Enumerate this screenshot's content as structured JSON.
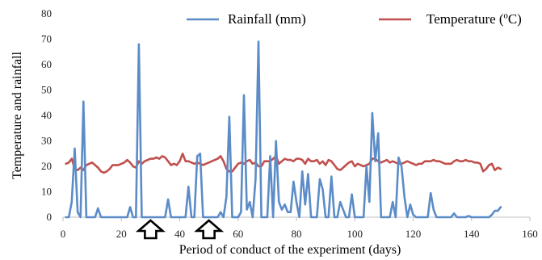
{
  "chart_data": {
    "type": "line",
    "xlabel": "Period of conduct of the experiment (days)",
    "ylabel": "Temperature and rainfall",
    "xlim": [
      0,
      160
    ],
    "ylim": [
      0,
      80
    ],
    "x_ticks": [
      0,
      20,
      40,
      60,
      80,
      100,
      120,
      140,
      160
    ],
    "y_ticks": [
      0,
      10,
      20,
      30,
      40,
      50,
      60,
      70,
      80
    ],
    "grid": false,
    "legend_position": "top",
    "annotations": [
      {
        "type": "up-arrow",
        "x": 30
      },
      {
        "type": "up-arrow",
        "x": 50
      }
    ],
    "series": [
      {
        "name": "Rainfall (mm)",
        "color": "#5B8CC8",
        "points": [
          [
            1,
            0
          ],
          [
            2,
            0
          ],
          [
            3,
            6
          ],
          [
            4,
            27
          ],
          [
            5,
            2
          ],
          [
            6,
            0
          ],
          [
            7,
            45.5
          ],
          [
            8,
            0
          ],
          [
            9,
            0
          ],
          [
            10,
            0
          ],
          [
            11,
            0
          ],
          [
            12,
            3.5
          ],
          [
            13,
            0
          ],
          [
            14,
            0
          ],
          [
            15,
            0
          ],
          [
            16,
            0
          ],
          [
            17,
            0
          ],
          [
            18,
            0
          ],
          [
            19,
            0
          ],
          [
            20,
            0
          ],
          [
            21,
            0
          ],
          [
            22,
            0
          ],
          [
            23,
            4
          ],
          [
            24,
            0
          ],
          [
            25,
            0
          ],
          [
            26,
            68
          ],
          [
            27,
            0
          ],
          [
            28,
            0
          ],
          [
            29,
            0
          ],
          [
            30,
            0
          ],
          [
            31,
            0
          ],
          [
            32,
            0
          ],
          [
            33,
            0
          ],
          [
            34,
            0
          ],
          [
            35,
            0
          ],
          [
            36,
            7
          ],
          [
            37,
            0
          ],
          [
            38,
            0
          ],
          [
            39,
            0
          ],
          [
            40,
            0
          ],
          [
            41,
            0
          ],
          [
            42,
            0
          ],
          [
            43,
            12
          ],
          [
            44,
            0
          ],
          [
            45,
            0
          ],
          [
            46,
            24
          ],
          [
            47,
            25
          ],
          [
            48,
            0
          ],
          [
            49,
            0
          ],
          [
            50,
            0
          ],
          [
            51,
            0
          ],
          [
            52,
            0
          ],
          [
            53,
            0
          ],
          [
            54,
            2
          ],
          [
            55,
            0
          ],
          [
            56,
            8
          ],
          [
            57,
            39.5
          ],
          [
            58,
            0
          ],
          [
            59,
            0
          ],
          [
            60,
            0
          ],
          [
            61,
            2
          ],
          [
            62,
            48
          ],
          [
            63,
            3
          ],
          [
            64,
            6
          ],
          [
            65,
            0
          ],
          [
            66,
            15
          ],
          [
            67,
            69
          ],
          [
            68,
            0
          ],
          [
            69,
            0
          ],
          [
            70,
            0
          ],
          [
            71,
            24
          ],
          [
            72,
            0
          ],
          [
            73,
            30
          ],
          [
            74,
            6
          ],
          [
            75,
            3
          ],
          [
            76,
            5
          ],
          [
            77,
            2
          ],
          [
            78,
            2
          ],
          [
            79,
            14
          ],
          [
            80,
            6
          ],
          [
            81,
            0
          ],
          [
            82,
            18
          ],
          [
            83,
            5
          ],
          [
            84,
            17
          ],
          [
            85,
            0
          ],
          [
            86,
            0
          ],
          [
            87,
            0
          ],
          [
            88,
            15
          ],
          [
            89,
            11
          ],
          [
            90,
            0
          ],
          [
            91,
            0
          ],
          [
            92,
            16
          ],
          [
            93,
            0
          ],
          [
            94,
            0
          ],
          [
            95,
            6
          ],
          [
            96,
            3
          ],
          [
            97,
            0
          ],
          [
            98,
            0
          ],
          [
            99,
            9
          ],
          [
            100,
            0
          ],
          [
            101,
            0
          ],
          [
            102,
            0
          ],
          [
            103,
            0
          ],
          [
            104,
            20
          ],
          [
            105,
            6
          ],
          [
            106,
            41
          ],
          [
            107,
            22
          ],
          [
            108,
            33
          ],
          [
            109,
            0
          ],
          [
            110,
            0
          ],
          [
            111,
            0
          ],
          [
            112,
            0
          ],
          [
            113,
            6
          ],
          [
            114,
            0
          ],
          [
            115,
            23.5
          ],
          [
            116,
            20
          ],
          [
            117,
            8
          ],
          [
            118,
            0
          ],
          [
            119,
            5
          ],
          [
            120,
            1
          ],
          [
            121,
            0
          ],
          [
            122,
            0
          ],
          [
            123,
            0
          ],
          [
            124,
            0
          ],
          [
            125,
            0
          ],
          [
            126,
            9.5
          ],
          [
            127,
            3
          ],
          [
            128,
            0
          ],
          [
            129,
            0
          ],
          [
            130,
            0
          ],
          [
            131,
            0
          ],
          [
            132,
            0
          ],
          [
            133,
            0
          ],
          [
            134,
            1.5
          ],
          [
            135,
            0
          ],
          [
            136,
            0
          ],
          [
            137,
            0
          ],
          [
            138,
            0
          ],
          [
            139,
            0.5
          ],
          [
            140,
            0
          ],
          [
            141,
            0
          ],
          [
            142,
            0
          ],
          [
            143,
            0
          ],
          [
            144,
            0
          ],
          [
            145,
            0
          ],
          [
            146,
            0
          ],
          [
            147,
            1
          ],
          [
            148,
            2.5
          ],
          [
            149,
            2.5
          ],
          [
            150,
            4
          ]
        ]
      },
      {
        "name": "Temperature (ºC)",
        "color": "#C0504D",
        "points": [
          [
            1,
            21
          ],
          [
            2,
            21.5
          ],
          [
            3,
            23
          ],
          [
            4,
            19
          ],
          [
            5,
            18.5
          ],
          [
            6,
            19.5
          ],
          [
            7,
            18.5
          ],
          [
            8,
            20.5
          ],
          [
            9,
            21
          ],
          [
            10,
            21.5
          ],
          [
            11,
            20.5
          ],
          [
            12,
            19.5
          ],
          [
            13,
            18
          ],
          [
            14,
            17.5
          ],
          [
            15,
            18
          ],
          [
            16,
            19
          ],
          [
            17,
            20.5
          ],
          [
            18,
            20.5
          ],
          [
            19,
            20.5
          ],
          [
            20,
            21
          ],
          [
            21,
            21.5
          ],
          [
            22,
            22.5
          ],
          [
            23,
            21.5
          ],
          [
            24,
            20
          ],
          [
            25,
            19.5
          ],
          [
            26,
            22
          ],
          [
            27,
            21
          ],
          [
            28,
            22
          ],
          [
            29,
            22.5
          ],
          [
            30,
            23
          ],
          [
            31,
            23
          ],
          [
            32,
            23.5
          ],
          [
            33,
            23
          ],
          [
            34,
            24
          ],
          [
            35,
            23.5
          ],
          [
            36,
            22
          ],
          [
            37,
            20.5
          ],
          [
            38,
            21
          ],
          [
            39,
            20.5
          ],
          [
            40,
            22
          ],
          [
            41,
            25
          ],
          [
            42,
            22
          ],
          [
            43,
            22
          ],
          [
            44,
            21.5
          ],
          [
            45,
            21
          ],
          [
            46,
            21.5
          ],
          [
            47,
            21
          ],
          [
            48,
            20.5
          ],
          [
            49,
            21
          ],
          [
            50,
            21.5
          ],
          [
            51,
            22
          ],
          [
            52,
            22.5
          ],
          [
            53,
            23
          ],
          [
            54,
            24
          ],
          [
            55,
            22
          ],
          [
            56,
            19
          ],
          [
            57,
            18
          ],
          [
            58,
            18
          ],
          [
            59,
            19.5
          ],
          [
            60,
            21
          ],
          [
            61,
            21.5
          ],
          [
            62,
            21
          ],
          [
            63,
            22
          ],
          [
            64,
            22.5
          ],
          [
            65,
            21
          ],
          [
            66,
            21.5
          ],
          [
            67,
            20
          ],
          [
            68,
            20
          ],
          [
            69,
            22
          ],
          [
            70,
            22
          ],
          [
            71,
            22
          ],
          [
            72,
            23
          ],
          [
            73,
            24
          ],
          [
            74,
            21
          ],
          [
            75,
            22
          ],
          [
            76,
            23
          ],
          [
            77,
            22.5
          ],
          [
            78,
            22.5
          ],
          [
            79,
            22
          ],
          [
            80,
            23
          ],
          [
            81,
            23
          ],
          [
            82,
            22.5
          ],
          [
            83,
            21
          ],
          [
            84,
            23
          ],
          [
            85,
            22
          ],
          [
            86,
            22
          ],
          [
            87,
            22.5
          ],
          [
            88,
            21
          ],
          [
            89,
            22
          ],
          [
            90,
            20.5
          ],
          [
            91,
            22.5
          ],
          [
            92,
            22
          ],
          [
            93,
            20.5
          ],
          [
            94,
            19
          ],
          [
            95,
            18.5
          ],
          [
            96,
            19.5
          ],
          [
            97,
            20.5
          ],
          [
            98,
            21.5
          ],
          [
            99,
            22
          ],
          [
            100,
            20
          ],
          [
            101,
            21
          ],
          [
            102,
            20.5
          ],
          [
            103,
            20
          ],
          [
            104,
            20.5
          ],
          [
            105,
            21
          ],
          [
            106,
            23
          ],
          [
            107,
            23
          ],
          [
            108,
            22
          ],
          [
            109,
            21.5
          ],
          [
            110,
            22
          ],
          [
            111,
            22.5
          ],
          [
            112,
            21.5
          ],
          [
            113,
            22
          ],
          [
            114,
            21.5
          ],
          [
            115,
            21
          ],
          [
            116,
            21
          ],
          [
            117,
            21.5
          ],
          [
            118,
            22
          ],
          [
            119,
            21.5
          ],
          [
            120,
            21
          ],
          [
            121,
            20.5
          ],
          [
            122,
            21
          ],
          [
            123,
            21
          ],
          [
            124,
            22
          ],
          [
            125,
            22
          ],
          [
            126,
            22
          ],
          [
            127,
            22.5
          ],
          [
            128,
            22
          ],
          [
            129,
            22
          ],
          [
            130,
            21.5
          ],
          [
            131,
            21
          ],
          [
            132,
            21
          ],
          [
            133,
            21
          ],
          [
            134,
            22
          ],
          [
            135,
            22.5
          ],
          [
            136,
            22
          ],
          [
            137,
            22
          ],
          [
            138,
            22.5
          ],
          [
            139,
            22
          ],
          [
            140,
            22
          ],
          [
            141,
            21.5
          ],
          [
            142,
            21.5
          ],
          [
            143,
            21
          ],
          [
            144,
            18
          ],
          [
            145,
            19
          ],
          [
            146,
            20.5
          ],
          [
            147,
            21
          ],
          [
            148,
            18.5
          ],
          [
            149,
            19.5
          ],
          [
            150,
            19
          ]
        ]
      }
    ]
  }
}
